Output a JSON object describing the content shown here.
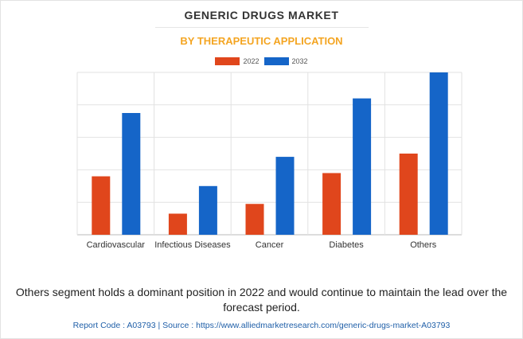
{
  "chart_data": {
    "type": "bar",
    "title": "GENERIC DRUGS MARKET",
    "subtitle": "BY THERAPEUTIC APPLICATION",
    "categories": [
      "Cardiovascular",
      "Infectious Diseases",
      "Cancer",
      "Diabetes",
      "Others"
    ],
    "series": [
      {
        "name": "2022",
        "color": "#e0461c",
        "values": [
          36,
          13,
          19,
          38,
          50
        ]
      },
      {
        "name": "2032",
        "color": "#1565c8",
        "values": [
          75,
          30,
          48,
          84,
          100
        ]
      }
    ],
    "ylim": [
      0,
      100
    ],
    "grid": true,
    "y_tick_labels_shown": false,
    "legend_position": "top-center"
  },
  "footnote": "Others segment holds a dominant position in 2022 and would continue to maintain the lead over the forecast period.",
  "source": "Report Code : A03793  |  Source : https://www.alliedmarketresearch.com/generic-drugs-market-A03793"
}
